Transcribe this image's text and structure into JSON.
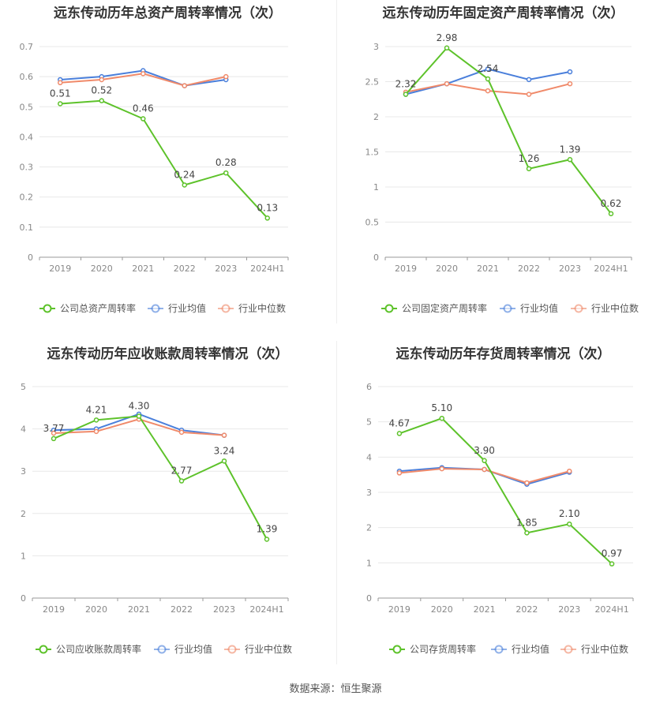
{
  "source_note": "数据来源：恒生聚源",
  "colors": {
    "company": "#5dc22a",
    "avg": "#4a7fdb",
    "median": "#f08a6a",
    "grid": "#e8e8e8",
    "axis": "#888888"
  },
  "chart_data": [
    {
      "type": "line",
      "title": "远东传动历年总资产周转率情况（次）",
      "categories": [
        "2019",
        "2020",
        "2021",
        "2022",
        "2023",
        "2024H1"
      ],
      "ylim": [
        0,
        0.7
      ],
      "yticks": [
        0,
        0.1,
        0.2,
        0.3,
        0.4,
        0.5,
        0.6,
        0.7
      ],
      "ytick_labels": [
        "0",
        "0.1",
        "0.2",
        "0.3",
        "0.4",
        "0.5",
        "0.6",
        "0.7"
      ],
      "series": [
        {
          "name": "公司总资产周转率",
          "role": "company",
          "values": [
            0.51,
            0.52,
            0.46,
            0.24,
            0.28,
            0.13
          ],
          "labels": [
            "0.51",
            "0.52",
            "0.46",
            "0.24",
            "0.28",
            "0.13"
          ]
        },
        {
          "name": "行业均值",
          "role": "avg",
          "values": [
            0.59,
            0.6,
            0.62,
            0.57,
            0.59,
            null
          ]
        },
        {
          "name": "行业中位数",
          "role": "median",
          "values": [
            0.58,
            0.59,
            0.61,
            0.57,
            0.6,
            null
          ]
        }
      ],
      "legend_position": "bottom"
    },
    {
      "type": "line",
      "title": "远东传动历年固定资产周转率情况（次）",
      "categories": [
        "2019",
        "2020",
        "2021",
        "2022",
        "2023",
        "2024H1"
      ],
      "ylim": [
        0,
        3
      ],
      "yticks": [
        0,
        0.5,
        1,
        1.5,
        2,
        2.5,
        3
      ],
      "ytick_labels": [
        "0",
        "0.5",
        "1",
        "1.5",
        "2",
        "2.5",
        "3"
      ],
      "series": [
        {
          "name": "公司固定资产周转率",
          "role": "company",
          "values": [
            2.32,
            2.98,
            2.54,
            1.26,
            1.39,
            0.62
          ],
          "labels": [
            "2.32",
            "2.98",
            "2.54",
            "1.26",
            "1.39",
            "0.62"
          ]
        },
        {
          "name": "行业均值",
          "role": "avg",
          "values": [
            2.32,
            2.47,
            2.68,
            2.53,
            2.64,
            null
          ]
        },
        {
          "name": "行业中位数",
          "role": "median",
          "values": [
            2.35,
            2.47,
            2.37,
            2.32,
            2.47,
            null
          ]
        }
      ],
      "legend_position": "bottom"
    },
    {
      "type": "line",
      "title": "远东传动历年应收账款周转率情况（次）",
      "categories": [
        "2019",
        "2020",
        "2021",
        "2022",
        "2023",
        "2024H1"
      ],
      "ylim": [
        0,
        5
      ],
      "yticks": [
        0,
        1,
        2,
        3,
        4,
        5
      ],
      "ytick_labels": [
        "0",
        "1",
        "2",
        "3",
        "4",
        "5"
      ],
      "series": [
        {
          "name": "公司应收账款周转率",
          "role": "company",
          "values": [
            3.77,
            4.21,
            4.3,
            2.77,
            3.24,
            1.39
          ],
          "labels": [
            "3.77",
            "4.21",
            "4.30",
            "2.77",
            "3.24",
            "1.39"
          ]
        },
        {
          "name": "行业均值",
          "role": "avg",
          "values": [
            3.97,
            4.0,
            4.35,
            3.97,
            3.85,
            null
          ]
        },
        {
          "name": "行业中位数",
          "role": "median",
          "values": [
            3.9,
            3.94,
            4.23,
            3.92,
            3.85,
            null
          ]
        }
      ],
      "legend_position": "bottom"
    },
    {
      "type": "line",
      "title": "远东传动历年存货周转率情况（次）",
      "categories": [
        "2019",
        "2020",
        "2021",
        "2022",
        "2023",
        "2024H1"
      ],
      "ylim": [
        0,
        6
      ],
      "yticks": [
        0,
        1,
        2,
        3,
        4,
        5,
        6
      ],
      "ytick_labels": [
        "0",
        "1",
        "2",
        "3",
        "4",
        "5",
        "6"
      ],
      "series": [
        {
          "name": "公司存货周转率",
          "role": "company",
          "values": [
            4.67,
            5.1,
            3.9,
            1.85,
            2.1,
            0.97
          ],
          "labels": [
            "4.67",
            "5.10",
            "3.90",
            "1.85",
            "2.10",
            "0.97"
          ]
        },
        {
          "name": "行业均值",
          "role": "avg",
          "values": [
            3.6,
            3.7,
            3.65,
            3.23,
            3.57,
            null
          ]
        },
        {
          "name": "行业中位数",
          "role": "median",
          "values": [
            3.55,
            3.67,
            3.65,
            3.27,
            3.6,
            null
          ]
        }
      ],
      "legend_position": "bottom"
    }
  ]
}
